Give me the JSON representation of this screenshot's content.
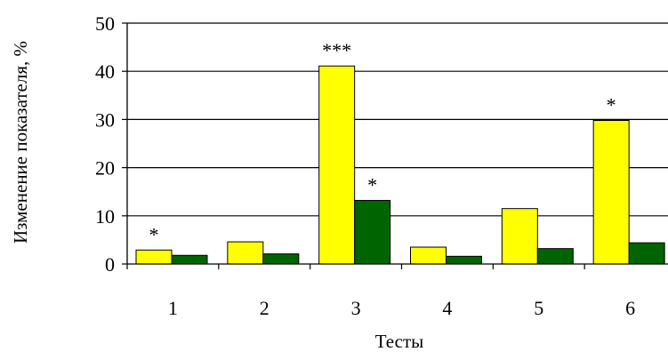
{
  "chart_data": {
    "type": "bar",
    "xlabel": "Тесты",
    "ylabel": "Изменение показателя, %",
    "ylim": [
      0,
      50
    ],
    "yticks": [
      0,
      10,
      20,
      30,
      40,
      50
    ],
    "grid": true,
    "categories": [
      "1",
      "2",
      "3",
      "4",
      "5",
      "6"
    ],
    "series": [
      {
        "color": "#ffff00",
        "values": [
          2.9,
          4.6,
          41.1,
          3.5,
          11.5,
          29.8
        ]
      },
      {
        "color": "#006400",
        "values": [
          1.8,
          2.1,
          13.2,
          1.6,
          3.2,
          4.4
        ]
      }
    ],
    "annotations": [
      {
        "category": "1",
        "series": 0,
        "text": "*"
      },
      {
        "category": "3",
        "series": 0,
        "text": "***"
      },
      {
        "category": "3",
        "series": 1,
        "text": "*"
      },
      {
        "category": "6",
        "series": 0,
        "text": "*"
      }
    ]
  }
}
